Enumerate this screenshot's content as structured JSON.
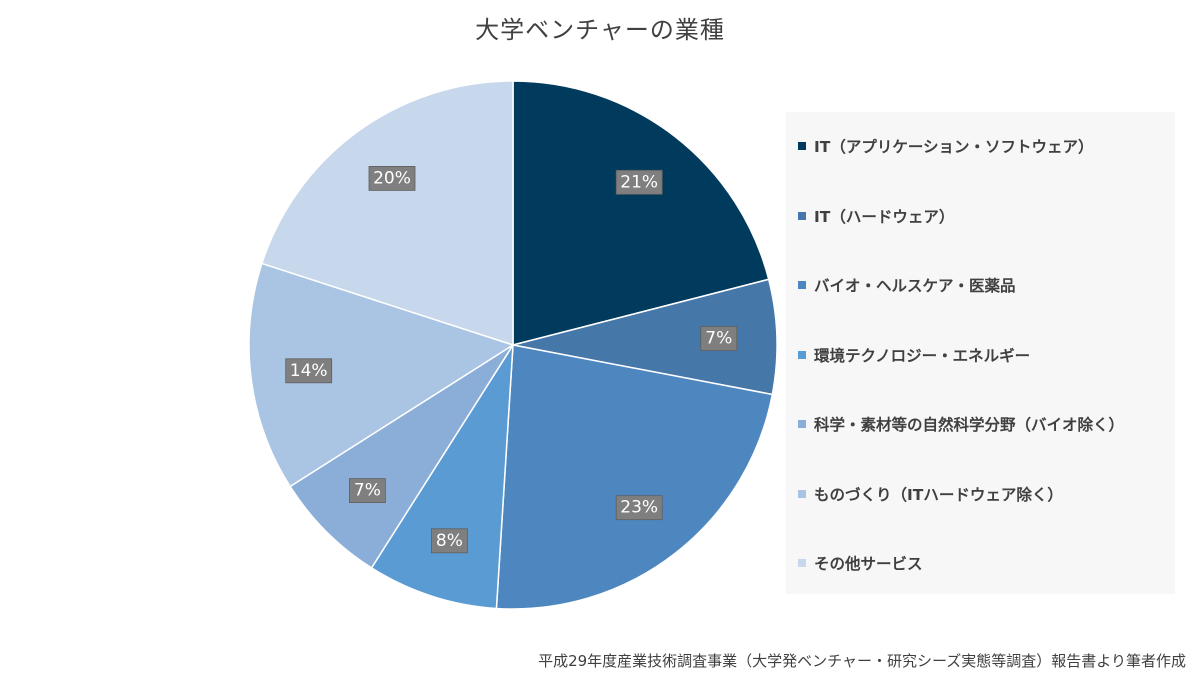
{
  "chart_data": {
    "type": "pie",
    "title": "大学ベンチャーの業種",
    "legend_position": "right",
    "slices": [
      {
        "name": "IT（アプリケーション・ソフトウェア）",
        "value": 21,
        "label": "21%",
        "color": "#003a5c"
      },
      {
        "name": "IT（ハードウェア）",
        "value": 7,
        "label": "7%",
        "color": "#4677a9"
      },
      {
        "name": "バイオ・ヘルスケア・医薬品",
        "value": 23,
        "label": "23%",
        "color": "#4e87bf"
      },
      {
        "name": "環境テクノロジー・エネルギー",
        "value": 8,
        "label": "8%",
        "color": "#5b9bd4"
      },
      {
        "name": "科学・素材等の自然科学分野（バイオ除く）",
        "value": 7,
        "label": "7%",
        "color": "#8aaed8"
      },
      {
        "name": "ものづくり（ITハードウェア除く）",
        "value": 14,
        "label": "14%",
        "color": "#aac4e4"
      },
      {
        "name": "その他サービス",
        "value": 20,
        "label": "20%",
        "color": "#c7d7ec"
      }
    ]
  },
  "source_note": "平成29年度産業技術調査事業（大学発ベンチャー・研究シーズ実態等調査）報告書より筆者作成"
}
